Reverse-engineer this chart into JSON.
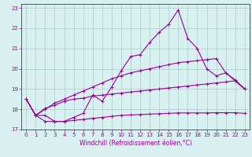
{
  "xlabel": "Windchill (Refroidissement éolien,°C)",
  "x": [
    0,
    1,
    2,
    3,
    4,
    5,
    6,
    7,
    8,
    9,
    10,
    11,
    12,
    13,
    14,
    15,
    16,
    17,
    18,
    19,
    20,
    21,
    22,
    23
  ],
  "line1": [
    18.5,
    17.7,
    17.7,
    17.4,
    17.4,
    17.6,
    17.8,
    18.7,
    18.4,
    19.1,
    19.9,
    20.6,
    20.7,
    21.3,
    21.8,
    22.2,
    22.9,
    21.5,
    21.0,
    20.0,
    19.65,
    19.8,
    19.4,
    19.0
  ],
  "line2": [
    18.5,
    17.7,
    18.0,
    18.3,
    18.5,
    18.7,
    18.9,
    19.1,
    19.3,
    19.5,
    19.65,
    19.8,
    19.9,
    20.0,
    20.1,
    20.2,
    20.3,
    20.35,
    20.4,
    20.45,
    20.5,
    19.8,
    19.45,
    19.0
  ],
  "line3": [
    18.5,
    17.7,
    18.05,
    18.2,
    18.4,
    18.5,
    18.55,
    18.65,
    18.7,
    18.75,
    18.8,
    18.85,
    18.9,
    18.95,
    19.0,
    19.05,
    19.1,
    19.15,
    19.2,
    19.25,
    19.3,
    19.35,
    19.4,
    19.0
  ],
  "line4": [
    18.5,
    17.7,
    17.4,
    17.4,
    17.4,
    17.45,
    17.5,
    17.55,
    17.6,
    17.65,
    17.7,
    17.72,
    17.74,
    17.76,
    17.78,
    17.8,
    17.82,
    17.82,
    17.82,
    17.82,
    17.83,
    17.83,
    17.83,
    17.8
  ],
  "line_color": "#990099",
  "bg_color": "#d8f0f0",
  "grid_color": "#aacccc",
  "ylim": [
    17.0,
    23.2
  ],
  "yticks": [
    17,
    18,
    19,
    20,
    21,
    22,
    23
  ],
  "xticks": [
    0,
    1,
    2,
    3,
    4,
    5,
    6,
    7,
    8,
    9,
    10,
    11,
    12,
    13,
    14,
    15,
    16,
    17,
    18,
    19,
    20,
    21,
    22,
    23
  ],
  "tick_fontsize": 5.0,
  "xlabel_fontsize": 5.5
}
